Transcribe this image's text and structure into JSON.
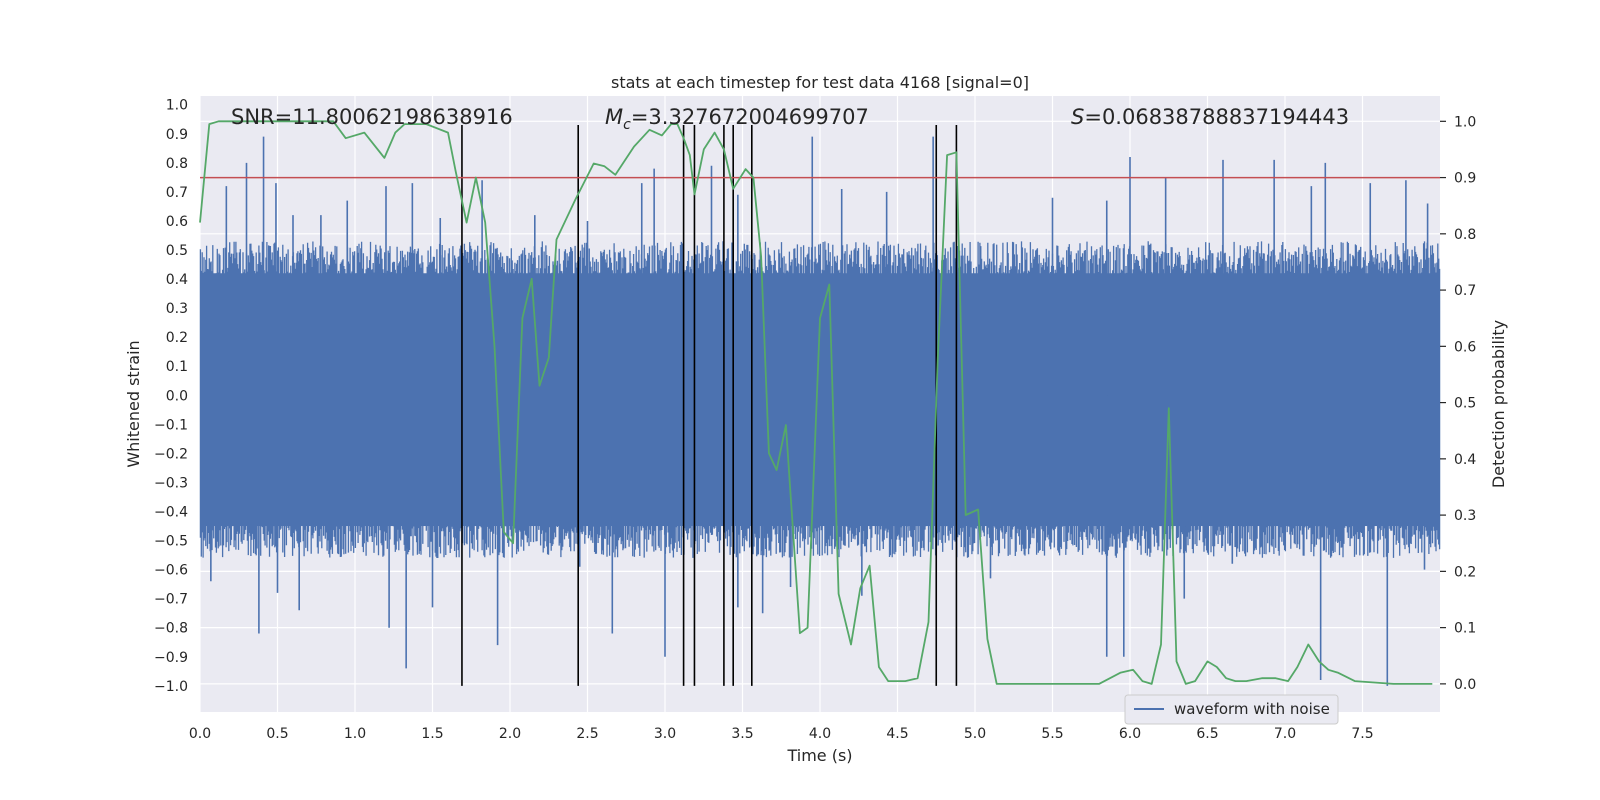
{
  "chart_data": {
    "type": "line",
    "title": "stats at each timestep for test data 4168 [signal=0]",
    "xlabel": "Time (s)",
    "ylabel_left": "Whitened strain",
    "ylabel_right": "Detection probability",
    "xlim": [
      0.0,
      8.0
    ],
    "ylim_left": [
      -1.09,
      1.03
    ],
    "ylim_right": [
      -0.05,
      1.045
    ],
    "x_ticks": [
      "0.0",
      "0.5",
      "1.0",
      "1.5",
      "2.0",
      "2.5",
      "3.0",
      "3.5",
      "4.0",
      "4.5",
      "5.0",
      "5.5",
      "6.0",
      "6.5",
      "7.0",
      "7.5"
    ],
    "y_left_ticks": [
      "1.0",
      "0.9",
      "0.8",
      "0.7",
      "0.6",
      "0.5",
      "0.4",
      "0.3",
      "0.2",
      "0.1",
      "0.0",
      "−0.1",
      "−0.2",
      "−0.3",
      "−0.4",
      "−0.5",
      "−0.6",
      "−0.7",
      "−0.8",
      "−0.9",
      "−1.0"
    ],
    "y_right_ticks": [
      "1.0",
      "0.9",
      "0.8",
      "0.7",
      "0.6",
      "0.5",
      "0.4",
      "0.3",
      "0.2",
      "0.1",
      "0.0"
    ],
    "annotations": {
      "snr": "SNR=11.80062198638916",
      "mc_symbol": "M",
      "mc_subscript": "c",
      "mc_value": "=3.327672004699707",
      "s_symbol": "S",
      "s_value": "=0.06838788837194443"
    },
    "legend": {
      "label": "waveform with noise",
      "location": "lower-right"
    },
    "threshold": {
      "value": 0.9,
      "axis": "right",
      "color": "#c44e52"
    },
    "event_lines": {
      "times": [
        1.69,
        2.44,
        3.12,
        3.19,
        3.38,
        3.44,
        3.56,
        4.75,
        4.88
      ],
      "ymin": -1.0,
      "ymax": 0.93,
      "color": "#000000"
    },
    "waveform": {
      "name": "waveform with noise",
      "color": "#4c72b0",
      "core_band": [
        -0.45,
        0.42
      ],
      "positive_spikes": [
        {
          "t": 0.17,
          "v": 0.72
        },
        {
          "t": 0.3,
          "v": 0.8
        },
        {
          "t": 0.41,
          "v": 0.89
        },
        {
          "t": 0.49,
          "v": 0.73
        },
        {
          "t": 0.6,
          "v": 0.62
        },
        {
          "t": 0.78,
          "v": 0.62
        },
        {
          "t": 0.95,
          "v": 0.67
        },
        {
          "t": 1.2,
          "v": 0.72
        },
        {
          "t": 1.37,
          "v": 0.73
        },
        {
          "t": 1.55,
          "v": 0.61
        },
        {
          "t": 1.82,
          "v": 0.74
        },
        {
          "t": 2.16,
          "v": 0.62
        },
        {
          "t": 2.5,
          "v": 0.6
        },
        {
          "t": 2.85,
          "v": 0.73
        },
        {
          "t": 2.93,
          "v": 0.78
        },
        {
          "t": 3.3,
          "v": 0.79
        },
        {
          "t": 3.47,
          "v": 0.69
        },
        {
          "t": 3.95,
          "v": 0.89
        },
        {
          "t": 4.14,
          "v": 0.71
        },
        {
          "t": 4.43,
          "v": 0.7
        },
        {
          "t": 4.73,
          "v": 0.89
        },
        {
          "t": 5.5,
          "v": 0.68
        },
        {
          "t": 5.85,
          "v": 0.67
        },
        {
          "t": 6.0,
          "v": 0.82
        },
        {
          "t": 6.23,
          "v": 0.75
        },
        {
          "t": 6.6,
          "v": 0.81
        },
        {
          "t": 6.93,
          "v": 0.81
        },
        {
          "t": 7.17,
          "v": 0.72
        },
        {
          "t": 7.26,
          "v": 0.8
        },
        {
          "t": 7.55,
          "v": 0.73
        },
        {
          "t": 7.78,
          "v": 0.74
        },
        {
          "t": 7.92,
          "v": 0.66
        }
      ],
      "negative_spikes": [
        {
          "t": 0.07,
          "v": -0.64
        },
        {
          "t": 0.38,
          "v": -0.82
        },
        {
          "t": 0.5,
          "v": -0.68
        },
        {
          "t": 0.64,
          "v": -0.74
        },
        {
          "t": 1.22,
          "v": -0.8
        },
        {
          "t": 1.33,
          "v": -0.94
        },
        {
          "t": 1.5,
          "v": -0.73
        },
        {
          "t": 1.92,
          "v": -0.86
        },
        {
          "t": 2.45,
          "v": -0.59
        },
        {
          "t": 2.66,
          "v": -0.82
        },
        {
          "t": 3.0,
          "v": -0.9
        },
        {
          "t": 3.47,
          "v": -0.73
        },
        {
          "t": 3.63,
          "v": -0.75
        },
        {
          "t": 3.81,
          "v": -0.66
        },
        {
          "t": 4.27,
          "v": -0.69
        },
        {
          "t": 5.1,
          "v": -0.63
        },
        {
          "t": 5.85,
          "v": -0.9
        },
        {
          "t": 5.96,
          "v": -0.9
        },
        {
          "t": 6.35,
          "v": -0.7
        },
        {
          "t": 6.66,
          "v": -0.58
        },
        {
          "t": 7.23,
          "v": -0.98
        },
        {
          "t": 7.66,
          "v": -1.0
        },
        {
          "t": 7.9,
          "v": -0.6
        }
      ]
    },
    "detection_probability": {
      "name": "detection probability",
      "color": "#55a868",
      "x": [
        0.0,
        0.06,
        0.12,
        0.4,
        0.86,
        0.94,
        1.06,
        1.19,
        1.26,
        1.32,
        1.46,
        1.6,
        1.65,
        1.72,
        1.78,
        1.84,
        1.9,
        1.96,
        2.02,
        2.08,
        2.14,
        2.19,
        2.25,
        2.3,
        2.42,
        2.54,
        2.61,
        2.68,
        2.8,
        2.9,
        2.98,
        3.04,
        3.08,
        3.12,
        3.16,
        3.19,
        3.25,
        3.32,
        3.38,
        3.44,
        3.52,
        3.57,
        3.62,
        3.67,
        3.72,
        3.78,
        3.87,
        3.92,
        4.0,
        4.06,
        4.12,
        4.2,
        4.26,
        4.32,
        4.38,
        4.44,
        4.55,
        4.63,
        4.7,
        4.76,
        4.82,
        4.88,
        4.94,
        5.02,
        5.08,
        5.14,
        5.2,
        5.4,
        5.8,
        5.94,
        6.02,
        6.08,
        6.14,
        6.2,
        6.25,
        6.3,
        6.36,
        6.42,
        6.5,
        6.56,
        6.62,
        6.68,
        6.75,
        6.85,
        6.94,
        7.02,
        7.08,
        7.15,
        7.22,
        7.28,
        7.34,
        7.45,
        7.7,
        7.95
      ],
      "values": [
        0.82,
        0.995,
        1.0,
        1.0,
        1.0,
        0.97,
        0.98,
        0.935,
        0.98,
        0.995,
        0.995,
        0.98,
        0.91,
        0.82,
        0.9,
        0.82,
        0.6,
        0.27,
        0.25,
        0.65,
        0.72,
        0.53,
        0.58,
        0.79,
        0.86,
        0.925,
        0.92,
        0.905,
        0.955,
        0.985,
        0.975,
        0.995,
        0.995,
        0.97,
        0.94,
        0.87,
        0.95,
        0.98,
        0.95,
        0.88,
        0.915,
        0.9,
        0.76,
        0.41,
        0.38,
        0.46,
        0.09,
        0.1,
        0.65,
        0.71,
        0.16,
        0.07,
        0.17,
        0.21,
        0.03,
        0.005,
        0.005,
        0.01,
        0.11,
        0.58,
        0.94,
        0.945,
        0.3,
        0.31,
        0.08,
        0.0,
        0.0,
        0.0,
        0.0,
        0.02,
        0.025,
        0.005,
        0.0,
        0.07,
        0.49,
        0.04,
        0.0,
        0.005,
        0.04,
        0.03,
        0.01,
        0.005,
        0.005,
        0.01,
        0.01,
        0.005,
        0.03,
        0.07,
        0.04,
        0.025,
        0.02,
        0.005,
        0.0,
        0.0
      ]
    }
  }
}
